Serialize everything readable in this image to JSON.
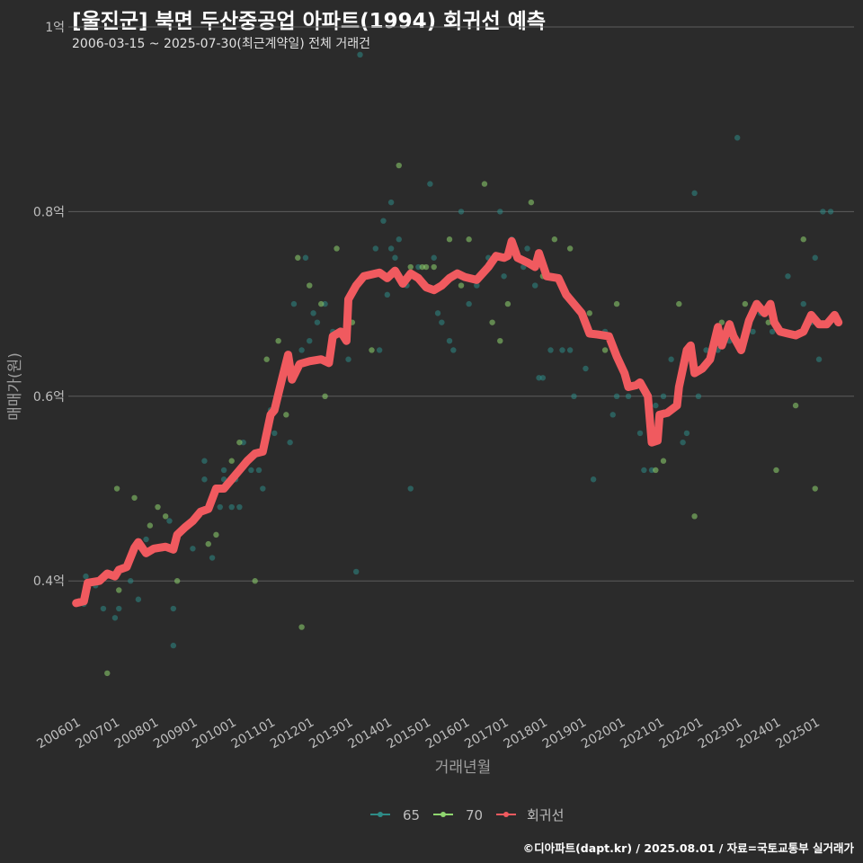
{
  "title": "[울진군] 북면 두산중공업 아파트(1994) 회귀선 예측",
  "subtitle": "2006-03-15 ~ 2025-07-30(최근계약일) 전체 거래건",
  "footer": "©디아파트(dapt.kr) / 2025.08.01 / 자료=국토교통부 실거래가",
  "colors": {
    "background": "#2b2b2b",
    "grid": "#5c5c5c",
    "text": "#bdbdbd",
    "series_65": "#2e8b86",
    "series_70": "#8fd66f",
    "regression": "#f05a5f"
  },
  "chart_data": {
    "type": "scatter",
    "title": "[울진군] 북면 두산중공업 아파트(1994) 회귀선 예측",
    "xlabel": "거래년월",
    "ylabel": "매매가(원)",
    "ylim": [
      0.26,
      1.0
    ],
    "y_unit": "억",
    "y_ticks": [
      0.4,
      0.6,
      0.8,
      1.0
    ],
    "y_tick_labels": [
      "0.4억",
      "0.6억",
      "0.8억",
      "1억"
    ],
    "x_range": [
      2005.8,
      2026.0
    ],
    "x_ticks": [
      2006,
      2007,
      2008,
      2009,
      2010,
      2011,
      2012,
      2013,
      2014,
      2015,
      2016,
      2017,
      2018,
      2019,
      2020,
      2021,
      2022,
      2023,
      2024,
      2025
    ],
    "x_tick_labels": [
      "200601",
      "200701",
      "200801",
      "200901",
      "201001",
      "201101",
      "201201",
      "201301",
      "201401",
      "201501",
      "201601",
      "201701",
      "201801",
      "201901",
      "202001",
      "202101",
      "202201",
      "202301",
      "202401",
      "202501"
    ],
    "legend": {
      "position": "bottom",
      "items": [
        {
          "key": "65",
          "label": "65"
        },
        {
          "key": "70",
          "label": "70"
        },
        {
          "key": "reg",
          "label": "회귀선"
        }
      ]
    },
    "series": [
      {
        "name": "65",
        "points": [
          [
            2006.2,
            0.375
          ],
          [
            2006.25,
            0.405
          ],
          [
            2006.5,
            0.395
          ],
          [
            2006.7,
            0.37
          ],
          [
            2007.0,
            0.36
          ],
          [
            2007.1,
            0.37
          ],
          [
            2007.4,
            0.4
          ],
          [
            2007.6,
            0.38
          ],
          [
            2007.8,
            0.445
          ],
          [
            2008.2,
            0.435
          ],
          [
            2008.4,
            0.465
          ],
          [
            2008.5,
            0.33
          ],
          [
            2008.5,
            0.37
          ],
          [
            2009.0,
            0.435
          ],
          [
            2009.3,
            0.51
          ],
          [
            2009.3,
            0.53
          ],
          [
            2009.5,
            0.425
          ],
          [
            2009.7,
            0.48
          ],
          [
            2009.8,
            0.51
          ],
          [
            2009.8,
            0.52
          ],
          [
            2010.0,
            0.48
          ],
          [
            2010.1,
            0.51
          ],
          [
            2010.2,
            0.48
          ],
          [
            2010.3,
            0.55
          ],
          [
            2010.5,
            0.52
          ],
          [
            2010.7,
            0.52
          ],
          [
            2010.8,
            0.5
          ],
          [
            2011.0,
            0.585
          ],
          [
            2011.1,
            0.56
          ],
          [
            2011.5,
            0.55
          ],
          [
            2011.6,
            0.7
          ],
          [
            2011.8,
            0.65
          ],
          [
            2011.9,
            0.75
          ],
          [
            2012.0,
            0.66
          ],
          [
            2012.1,
            0.69
          ],
          [
            2012.2,
            0.68
          ],
          [
            2012.4,
            0.7
          ],
          [
            2012.6,
            0.67
          ],
          [
            2013.0,
            0.64
          ],
          [
            2013.2,
            0.41
          ],
          [
            2013.3,
            0.97
          ],
          [
            2013.7,
            0.76
          ],
          [
            2013.8,
            0.65
          ],
          [
            2013.9,
            0.79
          ],
          [
            2014.0,
            0.71
          ],
          [
            2014.1,
            0.81
          ],
          [
            2014.1,
            0.76
          ],
          [
            2014.2,
            0.75
          ],
          [
            2014.3,
            0.77
          ],
          [
            2014.5,
            0.72
          ],
          [
            2014.6,
            0.5
          ],
          [
            2014.8,
            0.74
          ],
          [
            2015.0,
            0.72
          ],
          [
            2015.1,
            0.83
          ],
          [
            2015.2,
            0.75
          ],
          [
            2015.3,
            0.69
          ],
          [
            2015.4,
            0.68
          ],
          [
            2015.6,
            0.66
          ],
          [
            2015.7,
            0.65
          ],
          [
            2015.9,
            0.8
          ],
          [
            2016.1,
            0.7
          ],
          [
            2016.3,
            0.72
          ],
          [
            2016.4,
            0.73
          ],
          [
            2016.6,
            0.75
          ],
          [
            2016.9,
            0.8
          ],
          [
            2017.0,
            0.73
          ],
          [
            2017.2,
            0.77
          ],
          [
            2017.3,
            0.76
          ],
          [
            2017.5,
            0.74
          ],
          [
            2017.6,
            0.76
          ],
          [
            2017.8,
            0.72
          ],
          [
            2017.9,
            0.62
          ],
          [
            2018.0,
            0.62
          ],
          [
            2018.2,
            0.65
          ],
          [
            2018.5,
            0.65
          ],
          [
            2018.7,
            0.65
          ],
          [
            2018.8,
            0.6
          ],
          [
            2019.1,
            0.63
          ],
          [
            2019.3,
            0.51
          ],
          [
            2019.6,
            0.67
          ],
          [
            2019.8,
            0.58
          ],
          [
            2019.9,
            0.6
          ],
          [
            2020.2,
            0.6
          ],
          [
            2020.5,
            0.56
          ],
          [
            2020.6,
            0.52
          ],
          [
            2020.8,
            0.52
          ],
          [
            2020.9,
            0.59
          ],
          [
            2021.1,
            0.6
          ],
          [
            2021.3,
            0.64
          ],
          [
            2021.6,
            0.55
          ],
          [
            2021.7,
            0.56
          ],
          [
            2021.9,
            0.82
          ],
          [
            2022.0,
            0.6
          ],
          [
            2022.2,
            0.65
          ],
          [
            2022.5,
            0.65
          ],
          [
            2022.8,
            0.66
          ],
          [
            2023.0,
            0.88
          ],
          [
            2023.4,
            0.67
          ],
          [
            2023.6,
            0.69
          ],
          [
            2023.9,
            0.67
          ],
          [
            2024.1,
            0.67
          ],
          [
            2024.3,
            0.73
          ],
          [
            2024.7,
            0.7
          ],
          [
            2024.9,
            0.68
          ],
          [
            2025.0,
            0.75
          ],
          [
            2025.1,
            0.64
          ],
          [
            2025.2,
            0.8
          ],
          [
            2025.4,
            0.8
          ]
        ]
      },
      {
        "name": "70",
        "points": [
          [
            2006.8,
            0.3
          ],
          [
            2007.05,
            0.5
          ],
          [
            2007.1,
            0.39
          ],
          [
            2007.5,
            0.49
          ],
          [
            2007.9,
            0.46
          ],
          [
            2008.3,
            0.47
          ],
          [
            2008.1,
            0.48
          ],
          [
            2008.6,
            0.4
          ],
          [
            2009.4,
            0.44
          ],
          [
            2009.6,
            0.45
          ],
          [
            2010.0,
            0.53
          ],
          [
            2010.2,
            0.55
          ],
          [
            2010.6,
            0.4
          ],
          [
            2010.9,
            0.64
          ],
          [
            2011.2,
            0.66
          ],
          [
            2011.4,
            0.58
          ],
          [
            2011.7,
            0.75
          ],
          [
            2011.8,
            0.35
          ],
          [
            2012.0,
            0.72
          ],
          [
            2012.3,
            0.7
          ],
          [
            2012.4,
            0.6
          ],
          [
            2012.7,
            0.76
          ],
          [
            2013.1,
            0.68
          ],
          [
            2013.6,
            0.65
          ],
          [
            2014.3,
            0.85
          ],
          [
            2014.6,
            0.74
          ],
          [
            2014.9,
            0.74
          ],
          [
            2015.0,
            0.74
          ],
          [
            2015.2,
            0.74
          ],
          [
            2015.6,
            0.77
          ],
          [
            2015.9,
            0.72
          ],
          [
            2016.1,
            0.77
          ],
          [
            2016.5,
            0.83
          ],
          [
            2016.7,
            0.68
          ],
          [
            2016.9,
            0.66
          ],
          [
            2017.1,
            0.7
          ],
          [
            2017.7,
            0.81
          ],
          [
            2018.0,
            0.73
          ],
          [
            2018.3,
            0.77
          ],
          [
            2018.7,
            0.76
          ],
          [
            2019.2,
            0.69
          ],
          [
            2019.6,
            0.65
          ],
          [
            2019.9,
            0.7
          ],
          [
            2020.9,
            0.52
          ],
          [
            2021.1,
            0.53
          ],
          [
            2021.5,
            0.7
          ],
          [
            2021.9,
            0.47
          ],
          [
            2022.6,
            0.68
          ],
          [
            2023.2,
            0.7
          ],
          [
            2023.5,
            0.7
          ],
          [
            2023.8,
            0.68
          ],
          [
            2024.0,
            0.52
          ],
          [
            2024.5,
            0.59
          ],
          [
            2024.7,
            0.77
          ],
          [
            2025.0,
            0.5
          ]
        ]
      },
      {
        "name": "회귀선",
        "points": [
          [
            2006.0,
            0.376
          ],
          [
            2006.2,
            0.378
          ],
          [
            2006.3,
            0.398
          ],
          [
            2006.6,
            0.4
          ],
          [
            2006.8,
            0.408
          ],
          [
            2007.0,
            0.405
          ],
          [
            2007.1,
            0.412
          ],
          [
            2007.3,
            0.415
          ],
          [
            2007.5,
            0.436
          ],
          [
            2007.6,
            0.442
          ],
          [
            2007.8,
            0.43
          ],
          [
            2008.0,
            0.435
          ],
          [
            2008.3,
            0.437
          ],
          [
            2008.5,
            0.434
          ],
          [
            2008.6,
            0.45
          ],
          [
            2008.8,
            0.458
          ],
          [
            2009.0,
            0.465
          ],
          [
            2009.2,
            0.475
          ],
          [
            2009.4,
            0.478
          ],
          [
            2009.6,
            0.5
          ],
          [
            2009.8,
            0.5
          ],
          [
            2010.0,
            0.51
          ],
          [
            2010.2,
            0.52
          ],
          [
            2010.4,
            0.53
          ],
          [
            2010.6,
            0.538
          ],
          [
            2010.8,
            0.54
          ],
          [
            2011.0,
            0.58
          ],
          [
            2011.1,
            0.585
          ],
          [
            2011.3,
            0.62
          ],
          [
            2011.45,
            0.645
          ],
          [
            2011.55,
            0.618
          ],
          [
            2011.75,
            0.635
          ],
          [
            2012.0,
            0.638
          ],
          [
            2012.3,
            0.64
          ],
          [
            2012.5,
            0.636
          ],
          [
            2012.6,
            0.665
          ],
          [
            2012.8,
            0.67
          ],
          [
            2012.95,
            0.66
          ],
          [
            2013.0,
            0.705
          ],
          [
            2013.2,
            0.72
          ],
          [
            2013.4,
            0.73
          ],
          [
            2013.6,
            0.732
          ],
          [
            2013.8,
            0.734
          ],
          [
            2014.0,
            0.728
          ],
          [
            2014.2,
            0.736
          ],
          [
            2014.4,
            0.722
          ],
          [
            2014.6,
            0.733
          ],
          [
            2014.8,
            0.728
          ],
          [
            2015.0,
            0.718
          ],
          [
            2015.2,
            0.715
          ],
          [
            2015.4,
            0.72
          ],
          [
            2015.6,
            0.728
          ],
          [
            2015.8,
            0.733
          ],
          [
            2016.0,
            0.729
          ],
          [
            2016.3,
            0.726
          ],
          [
            2016.6,
            0.74
          ],
          [
            2016.8,
            0.752
          ],
          [
            2017.0,
            0.75
          ],
          [
            2017.1,
            0.752
          ],
          [
            2017.2,
            0.768
          ],
          [
            2017.35,
            0.75
          ],
          [
            2017.6,
            0.745
          ],
          [
            2017.8,
            0.74
          ],
          [
            2017.9,
            0.755
          ],
          [
            2018.1,
            0.73
          ],
          [
            2018.4,
            0.728
          ],
          [
            2018.6,
            0.71
          ],
          [
            2018.8,
            0.7
          ],
          [
            2019.0,
            0.69
          ],
          [
            2019.2,
            0.668
          ],
          [
            2019.4,
            0.667
          ],
          [
            2019.7,
            0.665
          ],
          [
            2019.9,
            0.643
          ],
          [
            2020.1,
            0.625
          ],
          [
            2020.2,
            0.61
          ],
          [
            2020.4,
            0.612
          ],
          [
            2020.5,
            0.615
          ],
          [
            2020.7,
            0.6
          ],
          [
            2020.8,
            0.55
          ],
          [
            2020.95,
            0.552
          ],
          [
            2021.0,
            0.58
          ],
          [
            2021.2,
            0.582
          ],
          [
            2021.45,
            0.59
          ],
          [
            2021.5,
            0.61
          ],
          [
            2021.7,
            0.65
          ],
          [
            2021.8,
            0.655
          ],
          [
            2021.9,
            0.625
          ],
          [
            2022.1,
            0.63
          ],
          [
            2022.3,
            0.64
          ],
          [
            2022.5,
            0.675
          ],
          [
            2022.6,
            0.655
          ],
          [
            2022.8,
            0.678
          ],
          [
            2022.9,
            0.665
          ],
          [
            2023.1,
            0.65
          ],
          [
            2023.3,
            0.682
          ],
          [
            2023.5,
            0.7
          ],
          [
            2023.7,
            0.69
          ],
          [
            2023.85,
            0.7
          ],
          [
            2023.95,
            0.68
          ],
          [
            2024.1,
            0.67
          ],
          [
            2024.3,
            0.668
          ],
          [
            2024.5,
            0.666
          ],
          [
            2024.7,
            0.67
          ],
          [
            2024.9,
            0.688
          ],
          [
            2025.1,
            0.678
          ],
          [
            2025.3,
            0.678
          ],
          [
            2025.5,
            0.688
          ],
          [
            2025.6,
            0.68
          ]
        ]
      }
    ]
  }
}
